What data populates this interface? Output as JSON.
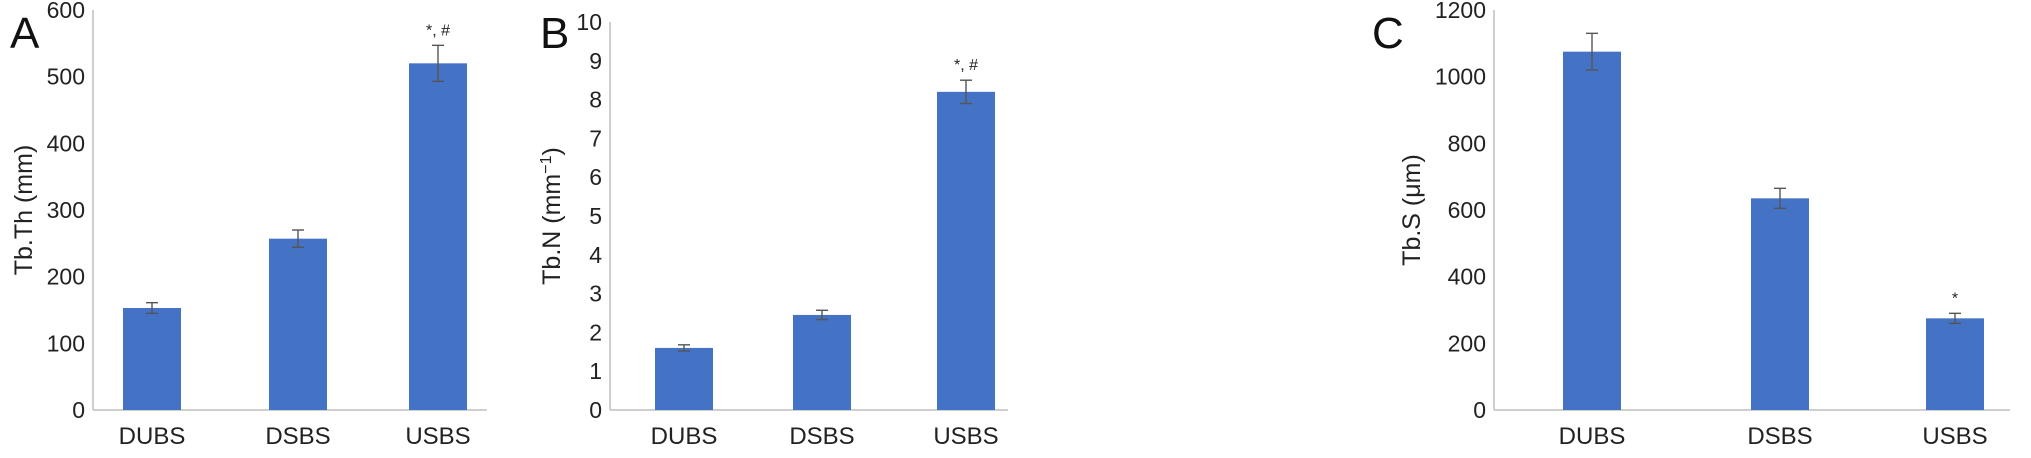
{
  "chart_data": [
    {
      "type": "bar",
      "panel_label": "A",
      "categories": [
        "DUBS",
        "DSBS",
        "USBS"
      ],
      "values": [
        153,
        257,
        520
      ],
      "errors": [
        8,
        13,
        27
      ],
      "annotations": [
        "",
        "",
        "*, #"
      ],
      "ylabel": "Tb.Th (mm)",
      "ylabel_sup": "",
      "ylabel_after": "",
      "ylim": [
        0,
        600
      ],
      "yticks": [
        0,
        100,
        200,
        300,
        400,
        500,
        600
      ],
      "color": "#4472c4",
      "grid": false
    },
    {
      "type": "bar",
      "panel_label": "B",
      "categories": [
        "DUBS",
        "DSBS",
        "USBS"
      ],
      "values": [
        1.6,
        2.45,
        8.2
      ],
      "errors": [
        0.08,
        0.12,
        0.3
      ],
      "annotations": [
        "",
        "",
        "*, #"
      ],
      "ylabel": "Tb.N (mm",
      "ylabel_sup": "−1",
      "ylabel_after": ")",
      "ylim": [
        0,
        10
      ],
      "yticks": [
        0,
        1,
        2,
        3,
        4,
        5,
        6,
        7,
        8,
        9,
        10
      ],
      "color": "#4472c4",
      "grid": false
    },
    {
      "type": "bar",
      "panel_label": "C",
      "categories": [
        "DUBS",
        "DSBS",
        "USBS"
      ],
      "values": [
        1075,
        635,
        275
      ],
      "errors": [
        55,
        30,
        15
      ],
      "annotations": [
        "",
        "",
        "*"
      ],
      "ylabel": "Tb.S (μm)",
      "ylabel_sup": "",
      "ylabel_after": "",
      "ylim": [
        0,
        1200
      ],
      "yticks": [
        0,
        200,
        400,
        600,
        800,
        1000,
        1200
      ],
      "color": "#4472c4",
      "grid": false
    }
  ]
}
